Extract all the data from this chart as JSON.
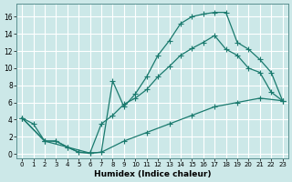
{
  "xlabel": "Humidex (Indice chaleur)",
  "bg_color": "#cce8e8",
  "grid_color": "#ffffff",
  "line_color": "#1a7a6e",
  "xlim": [
    -0.5,
    23.5
  ],
  "ylim": [
    -0.5,
    17.5
  ],
  "yticks": [
    0,
    2,
    4,
    6,
    8,
    10,
    12,
    14,
    16
  ],
  "xticks": [
    0,
    1,
    2,
    3,
    4,
    5,
    6,
    7,
    8,
    9,
    10,
    11,
    12,
    13,
    14,
    15,
    16,
    17,
    18,
    19,
    20,
    21,
    22,
    23
  ],
  "line1_x": [
    0,
    1,
    2,
    3,
    4,
    5,
    6,
    7,
    8,
    9,
    10,
    11,
    12,
    13,
    14,
    15,
    16,
    17,
    18,
    19,
    20,
    21,
    22,
    23
  ],
  "line1_y": [
    4.2,
    3.5,
    1.5,
    1.5,
    0.8,
    0.2,
    0.1,
    0.2,
    8.5,
    5.5,
    7.0,
    9.0,
    11.5,
    13.2,
    15.2,
    16.0,
    16.3,
    16.5,
    16.5,
    13.0,
    12.2,
    11.0,
    9.5,
    6.2
  ],
  "line2_x": [
    0,
    2,
    3,
    4,
    5,
    6,
    7,
    8,
    9,
    10,
    11,
    12,
    13,
    14,
    15,
    16,
    17,
    18,
    19,
    20,
    21,
    22,
    23
  ],
  "line2_y": [
    4.2,
    1.5,
    1.5,
    0.8,
    0.2,
    0.1,
    3.5,
    4.5,
    5.8,
    6.5,
    7.5,
    9.0,
    10.2,
    11.5,
    12.3,
    13.0,
    13.8,
    12.2,
    11.5,
    10.0,
    9.5,
    7.2,
    6.2
  ],
  "line3_x": [
    0,
    2,
    6,
    7,
    9,
    11,
    13,
    15,
    17,
    19,
    21,
    23
  ],
  "line3_y": [
    4.2,
    1.5,
    0.1,
    0.2,
    1.5,
    2.5,
    3.5,
    4.5,
    5.5,
    6.0,
    6.5,
    6.2
  ]
}
